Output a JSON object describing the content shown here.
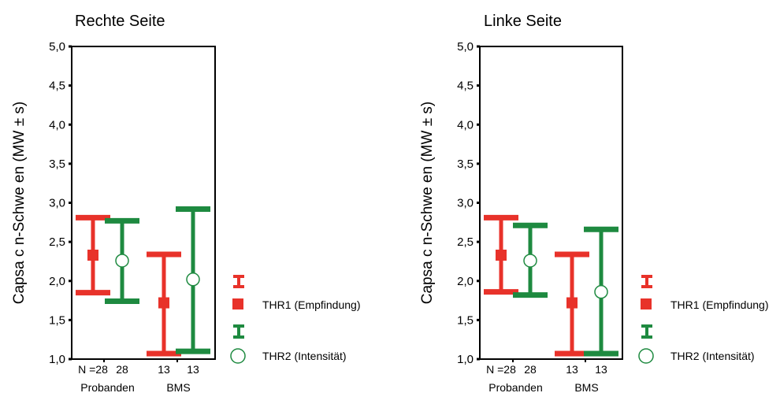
{
  "colors": {
    "thr1": "#e8322a",
    "thr2": "#1e8a40"
  },
  "chart_data": [
    {
      "type": "errorbar",
      "title": "Rechte Seite",
      "ylabel": "Capsa c n-Schwe en   (MW ± s)",
      "ylim": [
        1.0,
        5.0
      ],
      "yticks": [
        "1,0",
        "1,5",
        "2,0",
        "2,5",
        "3,0",
        "3,5",
        "4,0",
        "4,5",
        "5,0"
      ],
      "yticks_values": [
        1.0,
        1.5,
        2.0,
        2.5,
        3.0,
        3.5,
        4.0,
        4.5,
        5.0
      ],
      "groups": [
        {
          "name": "Probanden",
          "n_labels": [
            "N =28",
            "28"
          ]
        },
        {
          "name": "BMS",
          "n_labels": [
            "13",
            "13"
          ]
        }
      ],
      "series": [
        {
          "name": "THR1 (Empfindung)",
          "marker": "square",
          "mean": [
            2.33,
            1.72
          ],
          "low": [
            1.85,
            1.07
          ],
          "high": [
            2.81,
            2.34
          ]
        },
        {
          "name": "THR2 (Intensität)",
          "marker": "circle",
          "mean": [
            2.26,
            2.02
          ],
          "low": [
            1.74,
            1.1
          ],
          "high": [
            2.77,
            2.92
          ]
        }
      ]
    },
    {
      "type": "errorbar",
      "title": "Linke Seite",
      "ylabel": "Capsa c n-Schwe en   (MW ± s)",
      "ylim": [
        1.0,
        5.0
      ],
      "yticks": [
        "1,0",
        "1,5",
        "2,0",
        "2,5",
        "3,0",
        "3,5",
        "4,0",
        "4,5",
        "5,0"
      ],
      "yticks_values": [
        1.0,
        1.5,
        2.0,
        2.5,
        3.0,
        3.5,
        4.0,
        4.5,
        5.0
      ],
      "groups": [
        {
          "name": "Probanden",
          "n_labels": [
            "N =28",
            "28"
          ]
        },
        {
          "name": "BMS",
          "n_labels": [
            "13",
            "13"
          ]
        }
      ],
      "series": [
        {
          "name": "THR1 (Empfindung)",
          "marker": "square",
          "mean": [
            2.33,
            1.72
          ],
          "low": [
            1.86,
            1.07
          ],
          "high": [
            2.81,
            2.34
          ]
        },
        {
          "name": "THR2 (Intensität)",
          "marker": "circle",
          "mean": [
            2.26,
            1.86
          ],
          "low": [
            1.82,
            1.07
          ],
          "high": [
            2.71,
            2.66
          ]
        }
      ]
    }
  ]
}
